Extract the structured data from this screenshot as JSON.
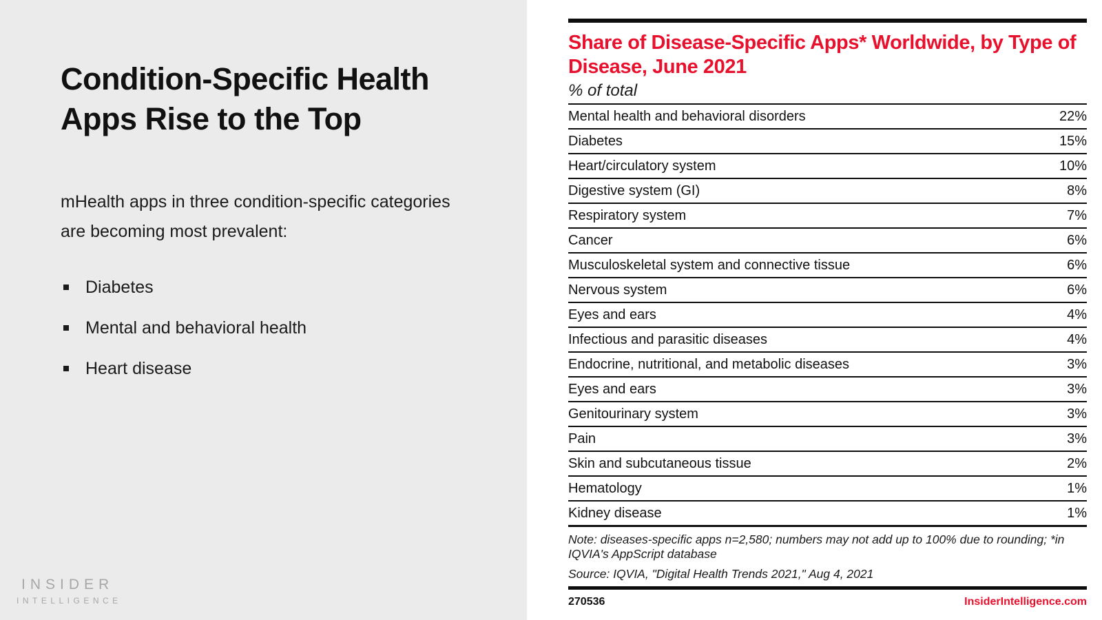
{
  "left_panel": {
    "title": "Condition-Specific Health Apps Rise to the Top",
    "intro": "mHealth apps in three condition-specific categories are becoming most prevalent:",
    "bullets": [
      "Diabetes",
      "Mental and behavioral health",
      "Heart disease"
    ],
    "logo": {
      "line1": "INSIDER",
      "line2": "INTELLIGENCE"
    }
  },
  "chart": {
    "title": "Share of Disease-Specific Apps* Worldwide, by Type of Disease, June 2021",
    "subtitle": "% of total",
    "note": "Note: diseases-specific apps n=2,580; numbers may not add up to 100% due to rounding; *in IQVIA's AppScript database",
    "source": "Source: IQVIA, \"Digital Health Trends 2021,\" Aug 4, 2021",
    "footer_id": "270536",
    "footer_site": "InsiderIntelligence.com"
  },
  "chart_data": {
    "type": "table",
    "title": "Share of Disease-Specific Apps* Worldwide, by Type of Disease, June 2021",
    "subtitle": "% of total",
    "unit": "%",
    "categories": [
      "Mental health and behavioral disorders",
      "Diabetes",
      "Heart/circulatory system",
      "Digestive system (GI)",
      "Respiratory system",
      "Cancer",
      "Musculoskeletal system and connective tissue",
      "Nervous system",
      "Eyes and ears",
      "Infectious and parasitic diseases",
      "Endocrine, nutritional, and metabolic diseases",
      "Eyes and ears",
      "Genitourinary system",
      "Pain",
      "Skin and subcutaneous tissue",
      "Hematology",
      "Kidney disease"
    ],
    "values": [
      22,
      15,
      10,
      8,
      7,
      6,
      6,
      6,
      4,
      4,
      3,
      3,
      3,
      3,
      2,
      1,
      1
    ]
  },
  "colors": {
    "accent_red": "#e8112d",
    "panel_gray": "#ebebeb",
    "logo_gray": "#a7a7a7",
    "text_black": "#111111"
  }
}
